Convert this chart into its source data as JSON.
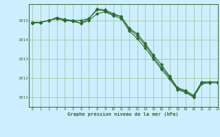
{
  "title": "Graphe pression niveau de la mer (hPa)",
  "background_color": "#cceeff",
  "grid_color": "#aaccaa",
  "line_color": "#2d6a2d",
  "xlim": [
    -0.5,
    23
  ],
  "ylim": [
    1010.5,
    1015.85
  ],
  "yticks": [
    1011,
    1012,
    1013,
    1014,
    1015
  ],
  "xticks": [
    0,
    1,
    2,
    3,
    4,
    5,
    6,
    7,
    8,
    9,
    10,
    11,
    12,
    13,
    14,
    15,
    16,
    17,
    18,
    19,
    20,
    21,
    22,
    23
  ],
  "series1": {
    "x": [
      0,
      1,
      2,
      3,
      4,
      5,
      6,
      7,
      8,
      9,
      10,
      11,
      12,
      13,
      14,
      15,
      16,
      17,
      18,
      19,
      20,
      21,
      22,
      23
    ],
    "y": [
      1014.9,
      1014.9,
      1015.0,
      1015.1,
      1015.0,
      1015.0,
      1015.0,
      1015.1,
      1015.55,
      1015.5,
      1015.3,
      1015.2,
      1014.6,
      1014.3,
      1013.8,
      1013.2,
      1012.7,
      1012.1,
      1011.5,
      1011.35,
      1011.1,
      1011.8,
      1011.8,
      1011.8
    ]
  },
  "series2": {
    "x": [
      0,
      1,
      2,
      3,
      4,
      5,
      6,
      7,
      8,
      9,
      10,
      11,
      12,
      13,
      14,
      15,
      16,
      17,
      18,
      19,
      20,
      21,
      22,
      23
    ],
    "y": [
      1014.9,
      1014.9,
      1015.0,
      1015.15,
      1015.05,
      1015.0,
      1014.85,
      1015.1,
      1015.6,
      1015.55,
      1015.35,
      1015.2,
      1014.55,
      1014.2,
      1013.7,
      1013.1,
      1012.55,
      1012.05,
      1011.45,
      1011.3,
      1011.05,
      1011.75,
      1011.8,
      1011.8
    ]
  },
  "series3": {
    "x": [
      0,
      1,
      2,
      3,
      4,
      5,
      6,
      7,
      8,
      9,
      10,
      11,
      12,
      13,
      14,
      15,
      16,
      17,
      18,
      19,
      20,
      21,
      22,
      23
    ],
    "y": [
      1014.85,
      1014.9,
      1015.0,
      1015.1,
      1015.0,
      1014.95,
      1014.85,
      1015.0,
      1015.35,
      1015.45,
      1015.25,
      1015.1,
      1014.45,
      1014.05,
      1013.55,
      1013.0,
      1012.45,
      1011.95,
      1011.4,
      1011.25,
      1011.0,
      1011.7,
      1011.75,
      1011.75
    ]
  }
}
